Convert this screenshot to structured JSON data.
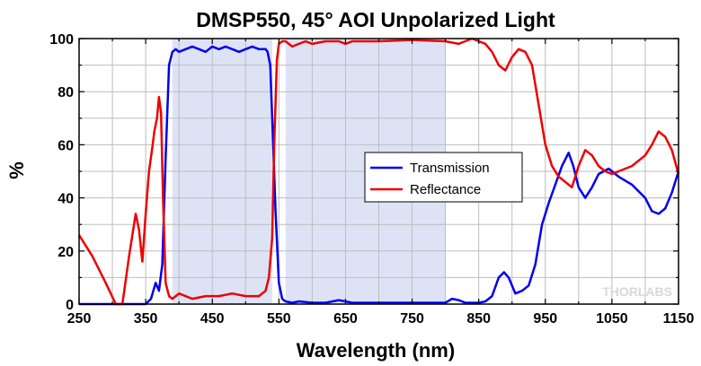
{
  "chart_data": {
    "type": "line",
    "title": "DMSP550, 45° AOI Unpolarized Light",
    "xlabel": "Wavelength (nm)",
    "ylabel": "%",
    "xlim": [
      250,
      1150
    ],
    "ylim": [
      0,
      100
    ],
    "xticks": [
      250,
      350,
      450,
      550,
      650,
      750,
      850,
      950,
      1050,
      1150
    ],
    "yticks": [
      0,
      20,
      40,
      60,
      80,
      100
    ],
    "grid": true,
    "legend_position": "center-right",
    "shaded_bands": [
      [
        390,
        540
      ],
      [
        560,
        800
      ]
    ],
    "shaded_color": "#dde3f5",
    "watermark": "THORLABS",
    "series": [
      {
        "name": "Transmission",
        "color": "#0000ee",
        "x": [
          250,
          300,
          350,
          358,
          365,
          370,
          375,
          380,
          385,
          390,
          395,
          400,
          410,
          420,
          430,
          440,
          450,
          460,
          470,
          480,
          490,
          500,
          510,
          520,
          530,
          533,
          537,
          540,
          545,
          550,
          555,
          560,
          570,
          580,
          600,
          620,
          640,
          650,
          660,
          700,
          750,
          800,
          810,
          820,
          830,
          850,
          860,
          870,
          880,
          888,
          895,
          905,
          915,
          925,
          935,
          945,
          955,
          965,
          975,
          985,
          992,
          1000,
          1010,
          1020,
          1030,
          1045,
          1060,
          1080,
          1100,
          1110,
          1120,
          1130,
          1140,
          1150
        ],
        "values": [
          0,
          0,
          0,
          2,
          8,
          5,
          15,
          55,
          90,
          95,
          96,
          95,
          96,
          97,
          96,
          95,
          97,
          96,
          97,
          96,
          95,
          96,
          97,
          96,
          96,
          95,
          90,
          70,
          35,
          8,
          2,
          1,
          0.5,
          1,
          0.5,
          0.5,
          1.5,
          1,
          0.5,
          0.5,
          0.5,
          0.5,
          2,
          1.5,
          0.5,
          0.5,
          1,
          3,
          10,
          12,
          10,
          4,
          5,
          7,
          15,
          30,
          38,
          45,
          52,
          57,
          52,
          44,
          40,
          44,
          49,
          51,
          48,
          45,
          40,
          35,
          34,
          36,
          42,
          50
        ]
      },
      {
        "name": "Reflectance",
        "color": "#ee0000",
        "x": [
          250,
          270,
          290,
          305,
          315,
          325,
          335,
          340,
          345,
          350,
          355,
          360,
          363,
          367,
          370,
          373,
          376,
          380,
          385,
          390,
          400,
          420,
          440,
          460,
          480,
          500,
          520,
          530,
          535,
          540,
          543,
          547,
          550,
          555,
          560,
          570,
          580,
          590,
          600,
          620,
          640,
          650,
          660,
          700,
          750,
          800,
          820,
          840,
          860,
          870,
          880,
          890,
          900,
          910,
          920,
          930,
          940,
          950,
          960,
          970,
          980,
          990,
          1000,
          1010,
          1020,
          1030,
          1040,
          1050,
          1060,
          1080,
          1100,
          1110,
          1120,
          1130,
          1140,
          1150
        ],
        "values": [
          26,
          18,
          8,
          0,
          0,
          18,
          34,
          28,
          16,
          34,
          50,
          59,
          65,
          70,
          78,
          72,
          40,
          8,
          3,
          2,
          4,
          2,
          3,
          3,
          4,
          3,
          3,
          5,
          10,
          25,
          60,
          92,
          98,
          99,
          99,
          97,
          98,
          99,
          98,
          99,
          99,
          98,
          99,
          99,
          99.5,
          99,
          98,
          100,
          98,
          95,
          90,
          88,
          93,
          96,
          95,
          90,
          75,
          60,
          52,
          48,
          46,
          44,
          52,
          58,
          56,
          52,
          50,
          49,
          50,
          52,
          56,
          60,
          65,
          63,
          58,
          49
        ]
      }
    ]
  }
}
